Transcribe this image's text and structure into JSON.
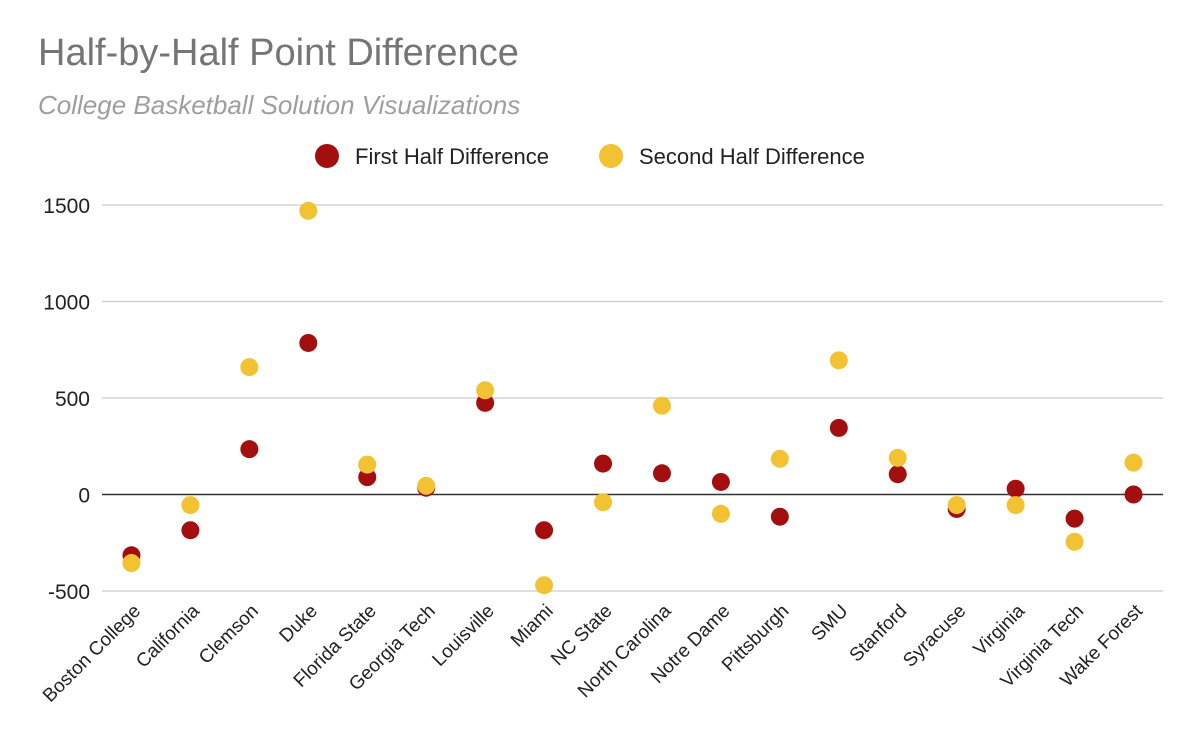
{
  "chart_data": {
    "type": "scatter",
    "title": "Half-by-Half Point Difference",
    "subtitle": "College Basketball Solution Visualizations",
    "xlabel": "",
    "ylabel": "",
    "ylim": [
      -500,
      1500
    ],
    "yticks": [
      1500,
      1000,
      500,
      0,
      -500
    ],
    "grid": true,
    "legend_position": "top",
    "categories": [
      "Boston College",
      "California",
      "Clemson",
      "Duke",
      "Florida State",
      "Georgia Tech",
      "Louisville",
      "Miami",
      "NC State",
      "North Carolina",
      "Notre Dame",
      "Pittsburgh",
      "SMU",
      "Stanford",
      "Syracuse",
      "Virginia",
      "Virginia Tech",
      "Wake Forest"
    ],
    "series": [
      {
        "name": "First Half Difference",
        "color": "#a30f0f",
        "values": [
          -315,
          -185,
          235,
          785,
          90,
          35,
          475,
          -185,
          160,
          110,
          65,
          -115,
          345,
          105,
          -75,
          30,
          -125,
          0
        ]
      },
      {
        "name": "Second Half Difference",
        "color": "#f2c232",
        "values": [
          -355,
          -55,
          660,
          1470,
          155,
          45,
          540,
          -470,
          -40,
          460,
          -100,
          185,
          695,
          190,
          -55,
          -55,
          -245,
          165
        ]
      }
    ]
  }
}
